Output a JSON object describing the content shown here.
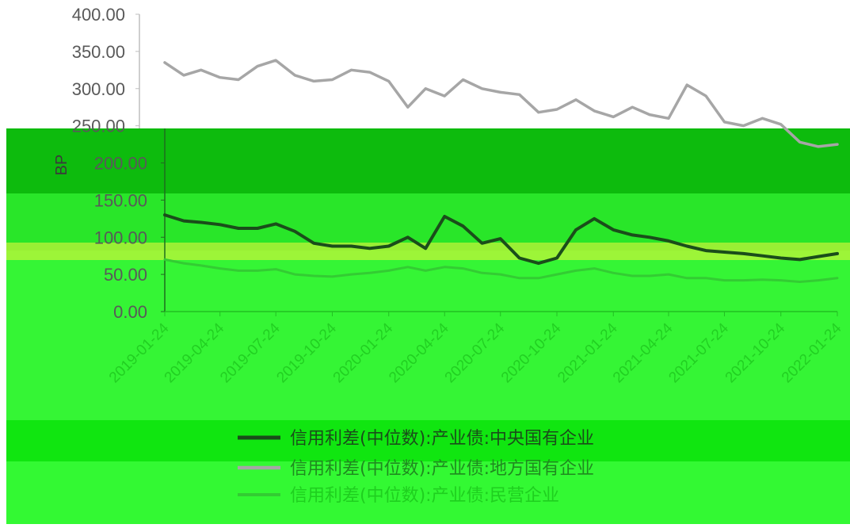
{
  "chart_data": {
    "type": "line",
    "title": "",
    "xlabel": "",
    "ylabel": "BP",
    "ylim": [
      0,
      400
    ],
    "y_ticks": [
      "0.00",
      "50.00",
      "100.00",
      "150.00",
      "200.00",
      "250.00",
      "300.00",
      "350.00",
      "400.00"
    ],
    "x_ticks": [
      "2019-01-24",
      "2019-04-24",
      "2019-07-24",
      "2019-10-24",
      "2020-01-24",
      "2020-04-24",
      "2020-07-24",
      "2020-10-24",
      "2021-01-24",
      "2021-04-24",
      "2021-07-24",
      "2021-10-24",
      "2022-01-24"
    ],
    "grid": false,
    "legend_position": "bottom",
    "x": [
      "2019-01-24",
      "2019-02-24",
      "2019-03-24",
      "2019-04-24",
      "2019-05-24",
      "2019-06-24",
      "2019-07-24",
      "2019-08-24",
      "2019-09-24",
      "2019-10-24",
      "2019-11-24",
      "2019-12-24",
      "2020-01-24",
      "2020-02-24",
      "2020-03-24",
      "2020-04-24",
      "2020-05-24",
      "2020-06-24",
      "2020-07-24",
      "2020-08-24",
      "2020-09-24",
      "2020-10-24",
      "2020-11-24",
      "2020-12-24",
      "2021-01-24",
      "2021-02-24",
      "2021-03-24",
      "2021-04-24",
      "2021-05-24",
      "2021-06-24",
      "2021-07-24",
      "2021-08-24",
      "2021-09-24",
      "2021-10-24",
      "2021-11-24",
      "2021-12-24",
      "2022-01-24"
    ],
    "series": [
      {
        "name": "信用利差(中位数):产业债:中央国有企业",
        "color": "#1a4d1a",
        "values": [
          130,
          122,
          120,
          117,
          112,
          112,
          118,
          108,
          92,
          88,
          88,
          85,
          88,
          100,
          85,
          128,
          115,
          92,
          98,
          72,
          65,
          72,
          110,
          125,
          110,
          103,
          100,
          95,
          88,
          82,
          80,
          78,
          75,
          72,
          70,
          74,
          78
        ]
      },
      {
        "name": "信用利差(中位数):产业债:地方国有企业",
        "color": "#a6a6a6",
        "values": [
          335,
          318,
          325,
          315,
          312,
          330,
          338,
          318,
          310,
          312,
          325,
          322,
          310,
          275,
          300,
          290,
          312,
          300,
          295,
          292,
          268,
          272,
          285,
          270,
          262,
          275,
          265,
          260,
          305,
          290,
          255,
          250,
          260,
          252,
          228,
          222,
          225
        ]
      },
      {
        "name": "信用利差(中位数):产业债:民营企业",
        "color": "#33cc33",
        "values": [
          70,
          65,
          62,
          58,
          55,
          55,
          57,
          50,
          48,
          47,
          50,
          52,
          55,
          60,
          55,
          60,
          58,
          52,
          50,
          45,
          45,
          50,
          55,
          58,
          52,
          48,
          48,
          50,
          45,
          45,
          42,
          42,
          43,
          42,
          40,
          42,
          45
        ]
      }
    ]
  }
}
